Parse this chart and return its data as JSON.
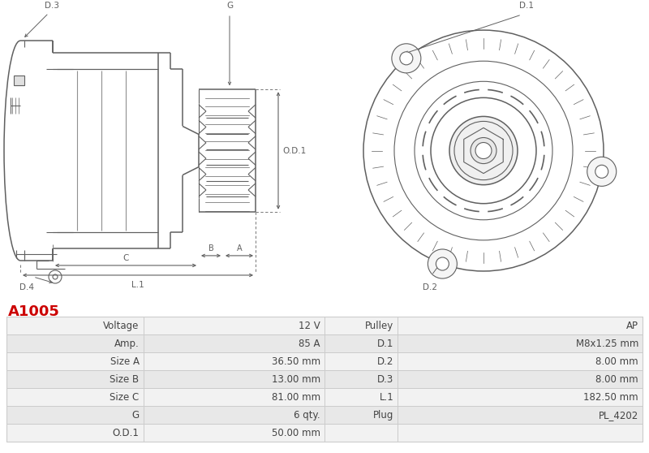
{
  "title": "A1005",
  "title_color": "#cc0000",
  "bg_color": "#ffffff",
  "table_rows": [
    [
      "Voltage",
      "12 V",
      "Pulley",
      "AP"
    ],
    [
      "Amp.",
      "85 A",
      "D.1",
      "M8x1.25 mm"
    ],
    [
      "Size A",
      "36.50 mm",
      "D.2",
      "8.00 mm"
    ],
    [
      "Size B",
      "13.00 mm",
      "D.3",
      "8.00 mm"
    ],
    [
      "Size C",
      "81.00 mm",
      "L.1",
      "182.50 mm"
    ],
    [
      "G",
      "6 qty.",
      "Plug",
      "PL_4202"
    ],
    [
      "O.D.1",
      "50.00 mm",
      "",
      ""
    ]
  ],
  "row_bg_odd": "#f2f2f2",
  "row_bg_even": "#e8e8e8",
  "border_color": "#cccccc",
  "text_color": "#444444",
  "font_size": 8.5
}
